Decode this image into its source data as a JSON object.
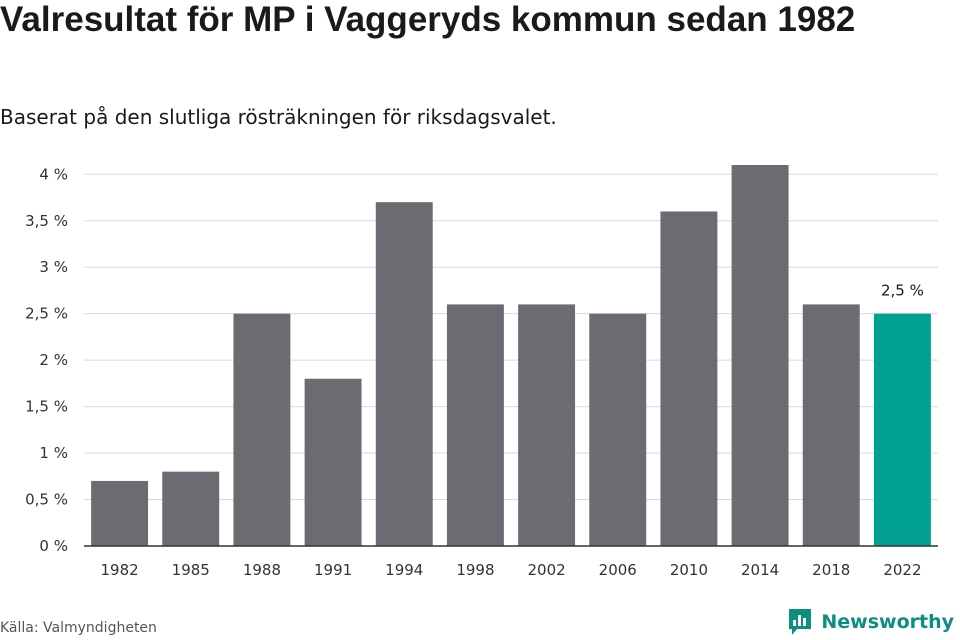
{
  "header": {
    "title": "Valresultat för MP i Vaggeryds kommun sedan 1982",
    "subtitle": "Baserat på den slutliga rösträkningen för riksdagsvalet."
  },
  "footer": {
    "source": "Källa: Valmyndigheten",
    "brand": "Newsworthy"
  },
  "colors": {
    "bar": "#6c6b71",
    "highlight": "#00a195",
    "grid": "#d9d9d9",
    "axis": "#333333",
    "brand": "#0c8e82"
  },
  "chart_data": {
    "type": "bar",
    "categories": [
      "1982",
      "1985",
      "1988",
      "1991",
      "1994",
      "1998",
      "2002",
      "2006",
      "2010",
      "2014",
      "2018",
      "2022"
    ],
    "values": [
      0.7,
      0.8,
      2.5,
      1.8,
      3.7,
      2.6,
      2.6,
      2.5,
      3.6,
      4.1,
      2.6,
      2.5
    ],
    "highlight_index": 11,
    "data_labels": [
      {
        "index": 11,
        "text": "2,5 %"
      }
    ],
    "yticks": [
      {
        "value": 0,
        "label": "0 %"
      },
      {
        "value": 0.5,
        "label": "0,5 %"
      },
      {
        "value": 1,
        "label": "1 %"
      },
      {
        "value": 1.5,
        "label": "1,5 %"
      },
      {
        "value": 2,
        "label": "2 %"
      },
      {
        "value": 2.5,
        "label": "2,5 %"
      },
      {
        "value": 3,
        "label": "3 %"
      },
      {
        "value": 3.5,
        "label": "3,5 %"
      },
      {
        "value": 4,
        "label": "4 %"
      }
    ],
    "ylim": [
      0,
      4.1
    ],
    "grid": true,
    "legend": "none"
  }
}
